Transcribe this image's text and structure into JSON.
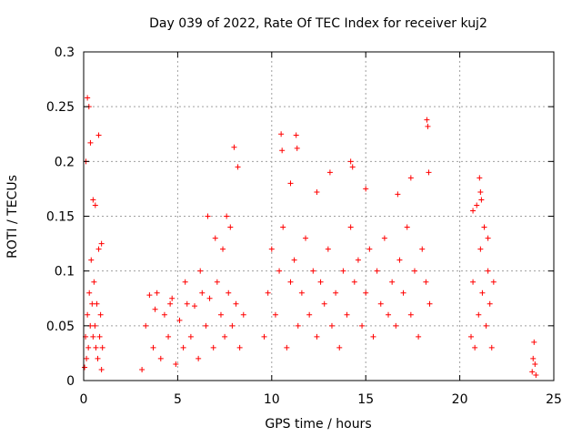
{
  "chart_data": {
    "type": "scatter",
    "title": "Day 039 of 2022, Rate Of TEC Index for receiver kuj2",
    "xlabel": "GPS time / hours",
    "ylabel": "ROTI / TECUs",
    "xlim": [
      0,
      25
    ],
    "ylim": [
      0,
      0.3
    ],
    "x_ticks": [
      0,
      5,
      10,
      15,
      20,
      25
    ],
    "x_tick_labels": [
      "0",
      "5",
      "10",
      "15",
      "20",
      "25"
    ],
    "y_ticks": [
      0,
      0.05,
      0.1,
      0.15,
      0.2,
      0.25,
      0.3
    ],
    "y_tick_labels": [
      "0",
      "0.05",
      "0.1",
      "0.15",
      "0.2",
      "0.25",
      "0.3"
    ],
    "grid": true,
    "marker": "plus",
    "color": "#ff0000",
    "series": [
      {
        "name": "ROTI",
        "x": [
          0.05,
          0.1,
          0.15,
          0.2,
          0.25,
          0.3,
          0.35,
          0.4,
          0.45,
          0.5,
          0.55,
          0.6,
          0.65,
          0.7,
          0.75,
          0.8,
          0.85,
          0.9,
          0.95,
          1.0,
          0.12,
          0.2,
          0.28,
          0.36,
          0.5,
          0.62,
          0.8,
          0.95,
          3.1,
          3.3,
          3.5,
          3.7,
          3.9,
          4.1,
          4.3,
          4.5,
          4.7,
          4.9,
          5.1,
          5.3,
          5.5,
          5.7,
          5.9,
          6.1,
          6.3,
          6.5,
          6.7,
          6.9,
          7.1,
          7.3,
          7.5,
          7.7,
          7.9,
          8.1,
          8.3,
          8.5,
          3.8,
          4.6,
          5.4,
          6.2,
          6.6,
          7.0,
          7.4,
          7.6,
          7.8,
          8.0,
          8.2,
          9.6,
          9.8,
          10.0,
          10.2,
          10.4,
          10.6,
          10.8,
          11.0,
          11.2,
          11.4,
          11.6,
          11.8,
          12.0,
          12.2,
          12.4,
          12.6,
          12.8,
          13.0,
          13.2,
          13.4,
          13.6,
          13.8,
          14.0,
          14.2,
          14.4,
          14.6,
          14.8,
          15.0,
          15.2,
          15.4,
          15.6,
          15.8,
          16.0,
          16.2,
          16.4,
          16.6,
          16.8,
          17.0,
          17.2,
          17.4,
          17.6,
          17.8,
          18.0,
          18.2,
          18.4,
          10.5,
          10.55,
          11.3,
          11.35,
          12.4,
          14.2,
          14.3,
          17.4,
          18.25,
          18.3,
          18.35,
          11.0,
          13.1,
          15.0,
          16.7,
          20.6,
          20.7,
          20.8,
          20.9,
          21.0,
          21.1,
          21.2,
          21.3,
          21.4,
          21.5,
          21.6,
          21.7,
          21.8,
          21.05,
          21.1,
          21.15,
          20.7,
          21.5,
          23.85,
          23.9,
          23.95,
          24.0,
          24.05
        ],
        "y": [
          0.012,
          0.04,
          0.02,
          0.06,
          0.03,
          0.08,
          0.05,
          0.11,
          0.07,
          0.04,
          0.09,
          0.05,
          0.03,
          0.07,
          0.02,
          0.12,
          0.04,
          0.06,
          0.01,
          0.03,
          0.2,
          0.258,
          0.25,
          0.217,
          0.165,
          0.16,
          0.224,
          0.125,
          0.01,
          0.05,
          0.078,
          0.03,
          0.08,
          0.02,
          0.06,
          0.04,
          0.075,
          0.015,
          0.055,
          0.03,
          0.07,
          0.04,
          0.068,
          0.02,
          0.08,
          0.05,
          0.075,
          0.03,
          0.09,
          0.06,
          0.04,
          0.08,
          0.05,
          0.07,
          0.03,
          0.06,
          0.065,
          0.07,
          0.09,
          0.1,
          0.15,
          0.13,
          0.12,
          0.15,
          0.14,
          0.213,
          0.195,
          0.04,
          0.08,
          0.12,
          0.06,
          0.1,
          0.14,
          0.03,
          0.09,
          0.11,
          0.05,
          0.08,
          0.13,
          0.06,
          0.1,
          0.04,
          0.09,
          0.07,
          0.12,
          0.05,
          0.08,
          0.03,
          0.1,
          0.06,
          0.14,
          0.09,
          0.11,
          0.05,
          0.08,
          0.12,
          0.04,
          0.1,
          0.07,
          0.13,
          0.06,
          0.09,
          0.05,
          0.11,
          0.08,
          0.14,
          0.06,
          0.1,
          0.04,
          0.12,
          0.09,
          0.07,
          0.225,
          0.21,
          0.224,
          0.212,
          0.172,
          0.2,
          0.195,
          0.185,
          0.238,
          0.232,
          0.19,
          0.18,
          0.19,
          0.175,
          0.17,
          0.04,
          0.09,
          0.03,
          0.16,
          0.06,
          0.12,
          0.08,
          0.14,
          0.05,
          0.1,
          0.07,
          0.03,
          0.09,
          0.185,
          0.172,
          0.165,
          0.155,
          0.13,
          0.008,
          0.02,
          0.035,
          0.015,
          0.005
        ]
      }
    ]
  }
}
